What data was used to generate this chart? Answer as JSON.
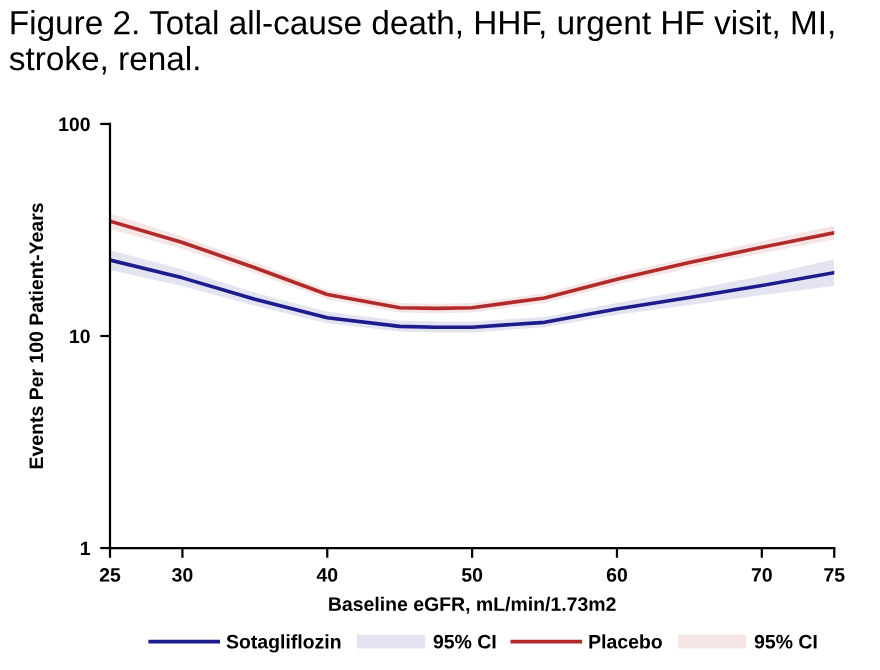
{
  "chart_data": {
    "type": "line",
    "title": "Figure 2. Total all-cause death, HHF, urgent HF visit, MI, stroke, renal.",
    "xlabel": "Baseline eGFR, mL/min/1.73m2",
    "ylabel": "Events Per 100 Patient-Years",
    "x": [
      25,
      30,
      35,
      40,
      45,
      47.5,
      50,
      55,
      60,
      65,
      70,
      75
    ],
    "series": [
      {
        "name": "Sotagliflozin",
        "color": "#1c1c8c",
        "values": [
          22.8,
          18.8,
          14.9,
          12.2,
          11.1,
          11.0,
          11.0,
          11.6,
          13.4,
          15.2,
          17.3,
          19.9
        ],
        "lower": [
          20.5,
          17.2,
          13.9,
          11.5,
          10.5,
          10.4,
          10.4,
          11.0,
          12.6,
          14.0,
          15.6,
          17.2
        ],
        "upper": [
          25.4,
          20.6,
          16.0,
          13.0,
          11.8,
          11.7,
          11.7,
          12.3,
          14.3,
          16.5,
          19.2,
          23.0
        ]
      },
      {
        "name": "Placebo",
        "color": "#b22a2a",
        "values": [
          34.8,
          27.6,
          21.0,
          15.7,
          13.6,
          13.5,
          13.6,
          15.1,
          18.5,
          22.2,
          26.2,
          30.7
        ],
        "lower": [
          32.0,
          25.8,
          19.8,
          14.9,
          12.9,
          12.8,
          12.9,
          14.3,
          17.5,
          21.0,
          24.6,
          28.5
        ],
        "upper": [
          37.8,
          29.5,
          22.3,
          16.5,
          14.3,
          14.2,
          14.3,
          15.9,
          19.6,
          23.5,
          28.0,
          33.1
        ]
      }
    ],
    "annotations": [
      "95% CI",
      "95% CI"
    ],
    "log": "y",
    "xlim": [
      25,
      75
    ],
    "ylim": [
      1,
      100
    ],
    "xticks": [
      25,
      30,
      40,
      50,
      60,
      70,
      75
    ],
    "yticks": [
      1,
      10,
      100
    ],
    "grid": false,
    "legend": "bottom",
    "line_style": "solid",
    "marker": "none"
  }
}
